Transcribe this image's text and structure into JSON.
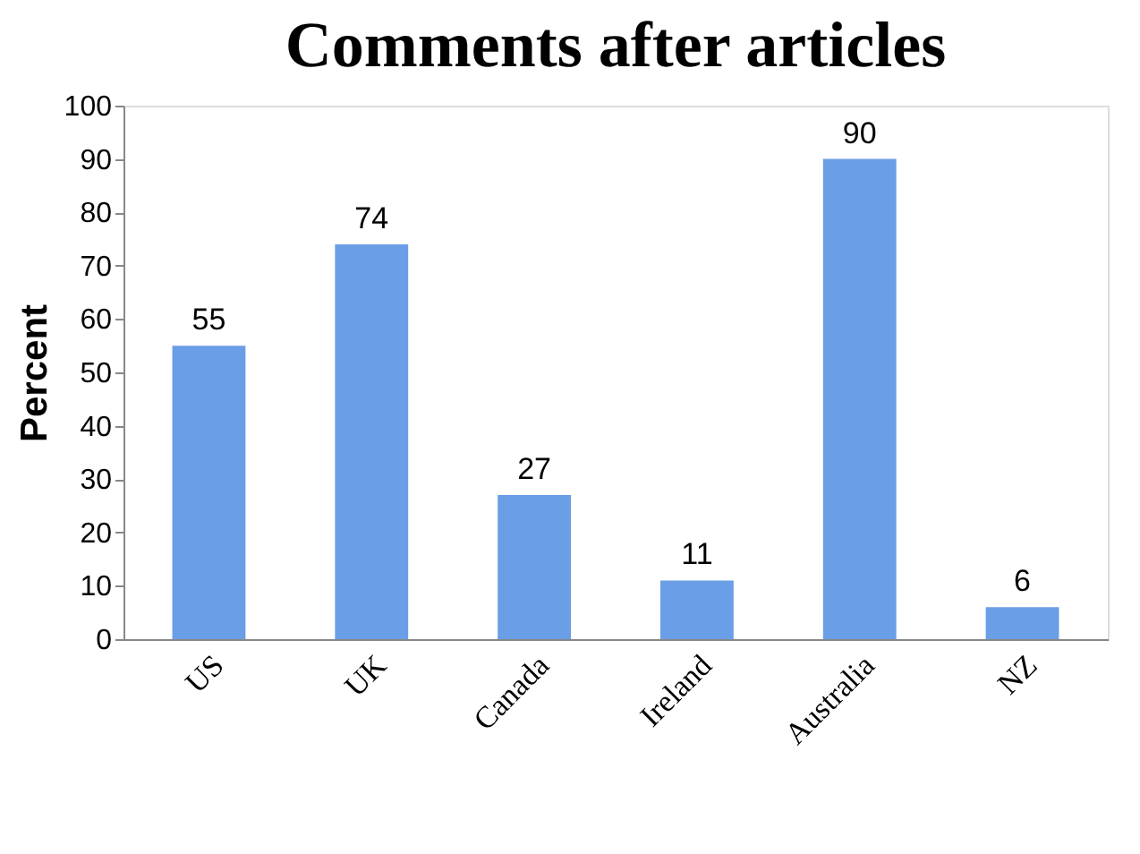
{
  "chart_data": {
    "type": "bar",
    "title": "Comments after articles",
    "ylabel": "Percent",
    "categories": [
      "US",
      "UK",
      "Canada",
      "Ireland",
      "Australia",
      "NZ"
    ],
    "values": [
      55,
      74,
      27,
      11,
      90,
      6
    ],
    "color": "#6a9ee6",
    "ylim": [
      0,
      100
    ],
    "yticks": [
      0,
      10,
      20,
      30,
      40,
      50,
      60,
      70,
      80,
      90,
      100
    ],
    "grid": false,
    "data_labels": true
  }
}
